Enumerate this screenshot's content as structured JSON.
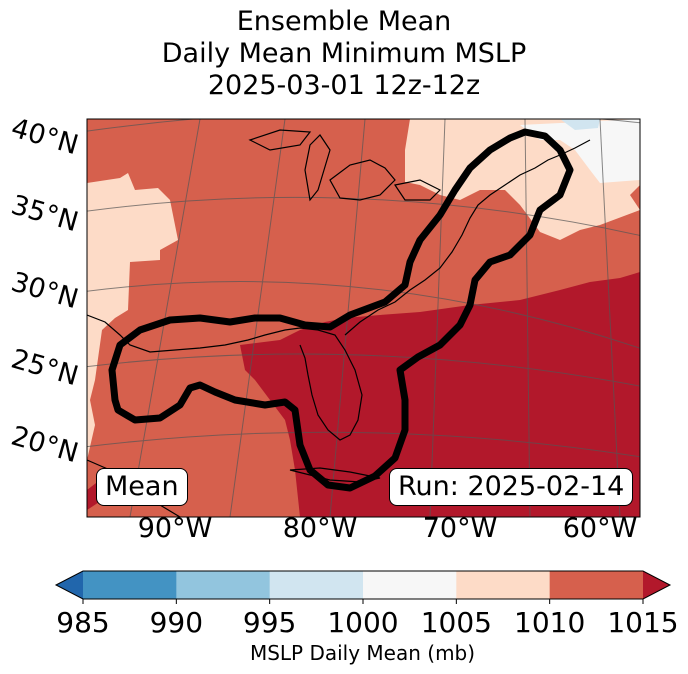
{
  "chart_data": {
    "type": "map",
    "title": [
      "Ensemble Mean",
      "Daily Mean Minimum MSLP",
      "2025-03-01 12z-12z"
    ],
    "lat_labels": [
      "40°N",
      "35°N",
      "30°N",
      "25°N",
      "20°N"
    ],
    "lon_labels": [
      "90°W",
      "80°W",
      "70°W",
      "60°W"
    ],
    "colorbar": {
      "ticks": [
        "985",
        "990",
        "995",
        "1000",
        "1005",
        "1010",
        "1015"
      ],
      "bin_colors": [
        "#3c8ac0",
        "#92c5df",
        "#d1e5f0",
        "#f7f7f7",
        "#fddbc7",
        "#d6604d",
        "#b2182b"
      ],
      "under_color": "#2166ac",
      "over_color": "#b2182b",
      "label": "MSLP Daily Mean (mb)"
    },
    "annotations": {
      "left": "Mean",
      "right": "Run: 2025-02-14"
    }
  }
}
